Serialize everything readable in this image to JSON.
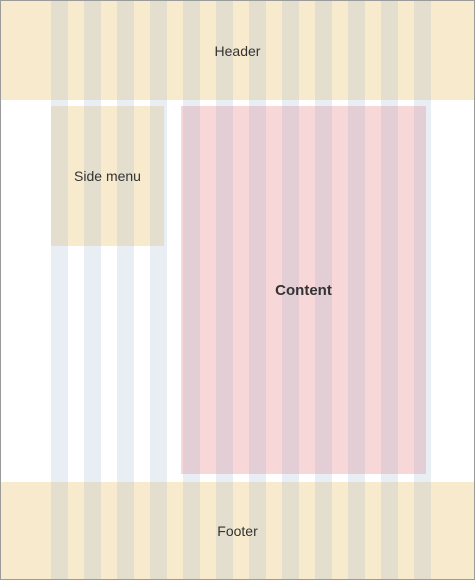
{
  "header": {
    "label": "Header"
  },
  "side_menu": {
    "label": "Side menu"
  },
  "content": {
    "label": "Content"
  },
  "footer": {
    "label": "Footer"
  },
  "colors": {
    "header_footer_bg": "#f8ebcd",
    "side_menu_bg": "#f8ebcd",
    "content_bg": "#f8d7d8",
    "grid_column_overlay": "rgba(157,176,204,0.22)",
    "frame_border": "#9b9b9b",
    "text": "#333333"
  },
  "grid": {
    "columns": 12
  }
}
